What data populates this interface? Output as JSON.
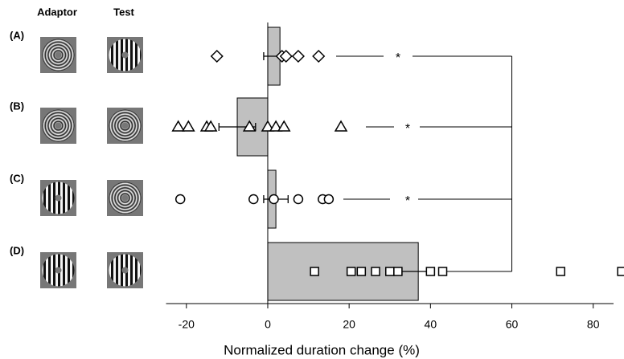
{
  "chart_data": {
    "type": "bar",
    "column_labels": [
      "Adaptor",
      "Test"
    ],
    "categories": [
      "(A)",
      "(B)",
      "(C)",
      "(D)"
    ],
    "values": [
      3,
      -7.5,
      2,
      37
    ],
    "errors": [
      4,
      4.5,
      3,
      4
    ],
    "color": "#c0c0c0",
    "markers": [
      "diamond",
      "triangle",
      "circle",
      "square"
    ],
    "points": [
      [
        -12.5,
        3.5,
        4.5,
        7.5,
        12.5
      ],
      [
        -22,
        -19.5,
        -15,
        -14,
        -4.5,
        0,
        2,
        4,
        18
      ],
      [
        -21.5,
        -3.5,
        1.5,
        7.5,
        13.5,
        15
      ],
      [
        11.5,
        20.5,
        23,
        26.5,
        30,
        32,
        40,
        43,
        72,
        87
      ]
    ],
    "annotations": [
      "*",
      "*",
      "*"
    ],
    "xlabel": "Normalized duration change (%)",
    "xlim": [
      -25,
      85
    ],
    "xticks": [
      -20,
      0,
      20,
      40,
      60,
      80
    ]
  }
}
